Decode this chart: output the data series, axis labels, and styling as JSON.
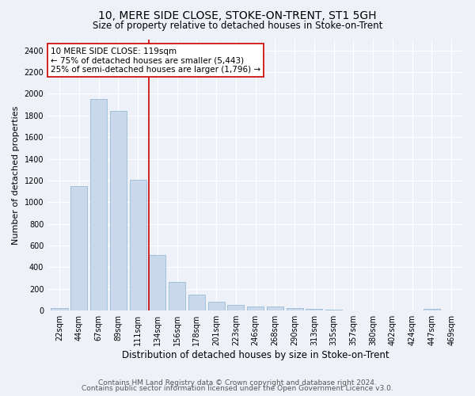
{
  "title1": "10, MERE SIDE CLOSE, STOKE-ON-TRENT, ST1 5GH",
  "title2": "Size of property relative to detached houses in Stoke-on-Trent",
  "xlabel": "Distribution of detached houses by size in Stoke-on-Trent",
  "ylabel": "Number of detached properties",
  "bar_labels": [
    "22sqm",
    "44sqm",
    "67sqm",
    "89sqm",
    "111sqm",
    "134sqm",
    "156sqm",
    "178sqm",
    "201sqm",
    "223sqm",
    "246sqm",
    "268sqm",
    "290sqm",
    "313sqm",
    "335sqm",
    "357sqm",
    "380sqm",
    "402sqm",
    "424sqm",
    "447sqm",
    "469sqm"
  ],
  "bar_values": [
    25,
    1150,
    1950,
    1840,
    1210,
    510,
    265,
    150,
    80,
    50,
    40,
    35,
    20,
    15,
    8,
    5,
    5,
    5,
    5,
    15,
    5
  ],
  "bar_color": "#c9d9eb",
  "bar_edgecolor": "#8ab4d4",
  "bar_width": 0.85,
  "ylim": [
    0,
    2500
  ],
  "yticks": [
    0,
    200,
    400,
    600,
    800,
    1000,
    1200,
    1400,
    1600,
    1800,
    2000,
    2200,
    2400
  ],
  "vline_x_index": 4.55,
  "vline_color": "#cc0000",
  "annotation_text": "10 MERE SIDE CLOSE: 119sqm\n← 75% of detached houses are smaller (5,443)\n25% of semi-detached houses are larger (1,796) →",
  "annotation_box_color": "#ffffff",
  "annotation_box_edge": "#cc0000",
  "fig_facecolor": "#eef2f8",
  "ax_facecolor": "#eef2f8",
  "grid_color": "#ffffff",
  "footer_line1": "Contains HM Land Registry data © Crown copyright and database right 2024.",
  "footer_line2": "Contains public sector information licensed under the Open Government Licence v3.0.",
  "title1_fontsize": 10,
  "title2_fontsize": 8.5,
  "xlabel_fontsize": 8.5,
  "ylabel_fontsize": 8,
  "tick_fontsize": 7,
  "annotation_fontsize": 7.5,
  "footer_fontsize": 6.5
}
